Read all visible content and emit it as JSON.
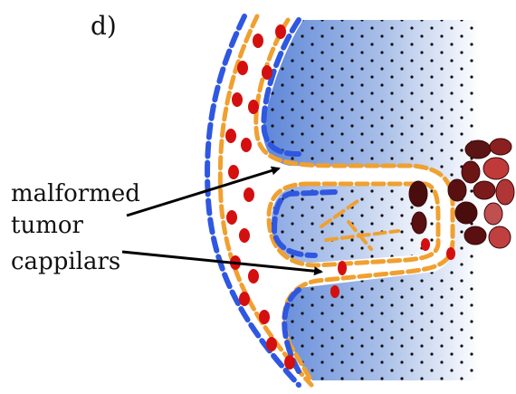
{
  "panel_label": "d)",
  "annotation": {
    "lines": [
      "malformed",
      "tumor",
      "cappilars"
    ]
  }
}
